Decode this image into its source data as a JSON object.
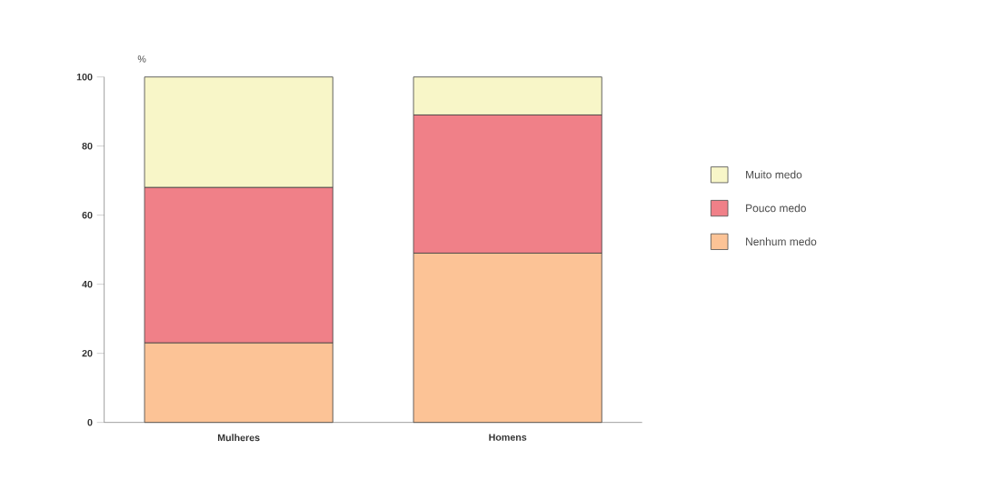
{
  "chart_data": {
    "type": "bar",
    "stacked": true,
    "ylabel": "%",
    "categories": [
      "Mulheres",
      "Homens"
    ],
    "series": [
      {
        "name": "Nenhum medo",
        "color": "#fcc396",
        "values": [
          23,
          49
        ]
      },
      {
        "name": "Pouco medo",
        "color": "#f08088",
        "values": [
          45,
          40
        ]
      },
      {
        "name": "Muito medo",
        "color": "#f8f6c8",
        "values": [
          32,
          11
        ]
      }
    ],
    "ylim": [
      0,
      100
    ],
    "yticks": [
      0,
      20,
      40,
      60,
      80,
      100
    ],
    "legend": "right"
  }
}
